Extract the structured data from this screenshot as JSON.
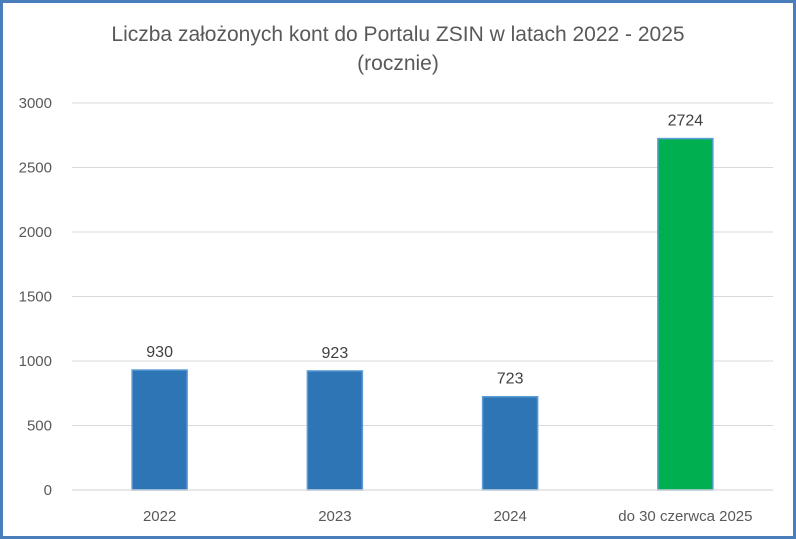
{
  "chart_data": {
    "type": "bar",
    "title": "Liczba założonych kont do Portalu ZSIN w latach 2022 - 2025",
    "subtitle": "(rocznie)",
    "xlabel": "",
    "ylabel": "",
    "categories": [
      "2022",
      "2023",
      "2024",
      "do 30 czerwca 2025"
    ],
    "values": [
      930,
      923,
      723,
      2724
    ],
    "data_labels": [
      "930",
      "923",
      "723",
      "2724"
    ],
    "bar_colors": [
      "#2e75b6",
      "#2e75b6",
      "#2e75b6",
      "#00b050"
    ],
    "bar_border_color": "#5b9bd5",
    "ylim": [
      0,
      3000
    ],
    "yticks": [
      0,
      500,
      1000,
      1500,
      2000,
      2500,
      3000
    ],
    "ytick_labels": [
      "0",
      "500",
      "1000",
      "1500",
      "2000",
      "2500",
      "3000"
    ],
    "grid": true,
    "grid_color": "#d9d9d9",
    "legend": "none",
    "frame_color": "#4a7ebb"
  }
}
